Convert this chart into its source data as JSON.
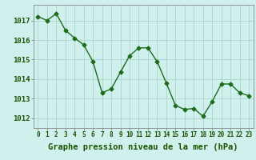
{
  "x": [
    0,
    1,
    2,
    3,
    4,
    5,
    6,
    7,
    8,
    9,
    10,
    11,
    12,
    13,
    14,
    15,
    16,
    17,
    18,
    19,
    20,
    21,
    22,
    23
  ],
  "y": [
    1017.2,
    1017.0,
    1017.35,
    1016.5,
    1016.1,
    1015.75,
    1014.9,
    1013.3,
    1013.5,
    1014.35,
    1015.2,
    1015.6,
    1015.6,
    1014.9,
    1013.8,
    1012.65,
    1012.45,
    1012.5,
    1012.1,
    1012.85,
    1013.75,
    1013.75,
    1013.3,
    1013.15
  ],
  "ylim": [
    1011.5,
    1017.8
  ],
  "yticks": [
    1012,
    1013,
    1014,
    1015,
    1016,
    1017
  ],
  "xticks": [
    0,
    1,
    2,
    3,
    4,
    5,
    6,
    7,
    8,
    9,
    10,
    11,
    12,
    13,
    14,
    15,
    16,
    17,
    18,
    19,
    20,
    21,
    22,
    23
  ],
  "xlabel": "Graphe pression niveau de la mer (hPa)",
  "line_color": "#1e6b1e",
  "marker": "D",
  "marker_size": 2.5,
  "line_width": 1.0,
  "background_color": "#cff0ec",
  "grid_color": "#b0d8d0",
  "axis_color": "#888888",
  "label_color": "#1a5200",
  "tick_label_color": "#1a5200",
  "xlabel_fontsize": 7.5,
  "ytick_fontsize": 6.5,
  "xtick_fontsize": 5.5
}
